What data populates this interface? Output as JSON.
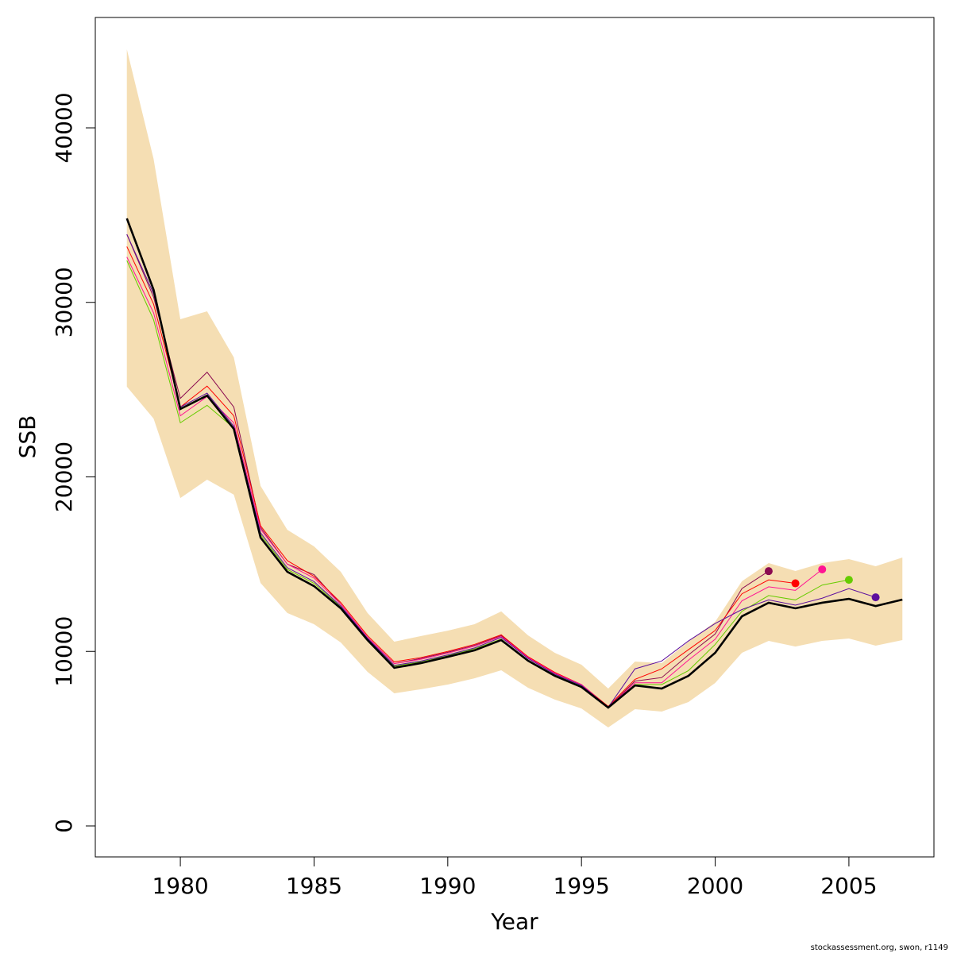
{
  "chart_data": {
    "type": "line",
    "xlabel": "Year",
    "ylabel": "SSB",
    "footer": "stockassessment.org, swon, r1149",
    "x": [
      1978,
      1979,
      1980,
      1981,
      1982,
      1983,
      1984,
      1985,
      1986,
      1987,
      1988,
      1989,
      1990,
      1991,
      1992,
      1993,
      1994,
      1995,
      1996,
      1997,
      1998,
      1999,
      2000,
      2001,
      2002,
      2003,
      2004,
      2005,
      2006,
      2007
    ],
    "band": {
      "color": "#f5deb3",
      "upper": [
        44500,
        38220,
        29030,
        29490,
        26850,
        19480,
        16970,
        16020,
        14560,
        12200,
        10560,
        10880,
        11190,
        11560,
        12290,
        10920,
        9920,
        9240,
        7870,
        9420,
        9330,
        10560,
        11700,
        14020,
        15060,
        14610,
        15060,
        15290,
        14880,
        15380
      ],
      "lower": [
        25170,
        23340,
        18790,
        19840,
        18980,
        13920,
        12200,
        11560,
        10510,
        8830,
        7600,
        7830,
        8100,
        8460,
        8920,
        7920,
        7240,
        6730,
        5640,
        6690,
        6550,
        7100,
        8190,
        9920,
        10600,
        10280,
        10600,
        10740,
        10330,
        10650
      ]
    },
    "series": [
      {
        "color": "#000000",
        "values": [
          34810,
          30720,
          23890,
          24660,
          22750,
          16520,
          14560,
          13740,
          12470,
          10650,
          9060,
          9330,
          9690,
          10060,
          10650,
          9470,
          8600,
          7960,
          6780,
          8050,
          7870,
          8600,
          9920,
          12010,
          12790,
          12470,
          12790,
          13010,
          12600,
          12970
        ]
      },
      {
        "color": "#5d0f9e",
        "values": [
          33900,
          30500,
          24000,
          24800,
          22900,
          16800,
          14800,
          14000,
          12600,
          10750,
          9200,
          9450,
          9800,
          10200,
          10800,
          9600,
          8700,
          8050,
          6800,
          9000,
          9450,
          10600,
          11600,
          12400,
          12950,
          12650,
          13050,
          13600,
          13100,
          null
        ]
      },
      {
        "color": "#66cc00",
        "values": [
          32400,
          29000,
          23100,
          24100,
          22800,
          16700,
          14700,
          13900,
          12550,
          10700,
          9150,
          9400,
          9750,
          10150,
          10700,
          9500,
          8650,
          8000,
          6750,
          8100,
          8100,
          8900,
          10400,
          12300,
          13200,
          12950,
          13800,
          14100,
          null,
          null
        ]
      },
      {
        "color": "#ff1493",
        "values": [
          32600,
          29400,
          23500,
          24600,
          23100,
          17000,
          15000,
          14200,
          12700,
          10800,
          9300,
          9550,
          9900,
          10300,
          10850,
          9650,
          8750,
          8100,
          6800,
          8200,
          8200,
          9500,
          10700,
          12900,
          13700,
          13500,
          14700,
          null,
          null,
          null
        ]
      },
      {
        "color": "#ff0000",
        "values": [
          33200,
          29900,
          24000,
          25200,
          23500,
          17200,
          15200,
          14300,
          12800,
          10900,
          9400,
          9650,
          10000,
          10400,
          10950,
          9700,
          8800,
          8100,
          6850,
          8400,
          9000,
          10100,
          11200,
          13300,
          14100,
          13900,
          null,
          null,
          null,
          null
        ]
      },
      {
        "color": "#8b0a50",
        "values": [
          33900,
          30300,
          24500,
          26000,
          24000,
          17100,
          15000,
          14400,
          12700,
          10800,
          9300,
          9600,
          9950,
          10350,
          10900,
          9650,
          8750,
          8100,
          6800,
          8300,
          8500,
          9800,
          11000,
          13600,
          14600,
          null,
          null,
          null,
          null,
          null
        ]
      }
    ],
    "xlim": [
      1976.82,
      2008.18
    ],
    "ylim": [
      -1775,
      46325
    ],
    "xticks": [
      1980,
      1985,
      1990,
      1995,
      2000,
      2005
    ],
    "yticks": [
      0,
      10000,
      20000,
      30000,
      40000
    ]
  }
}
